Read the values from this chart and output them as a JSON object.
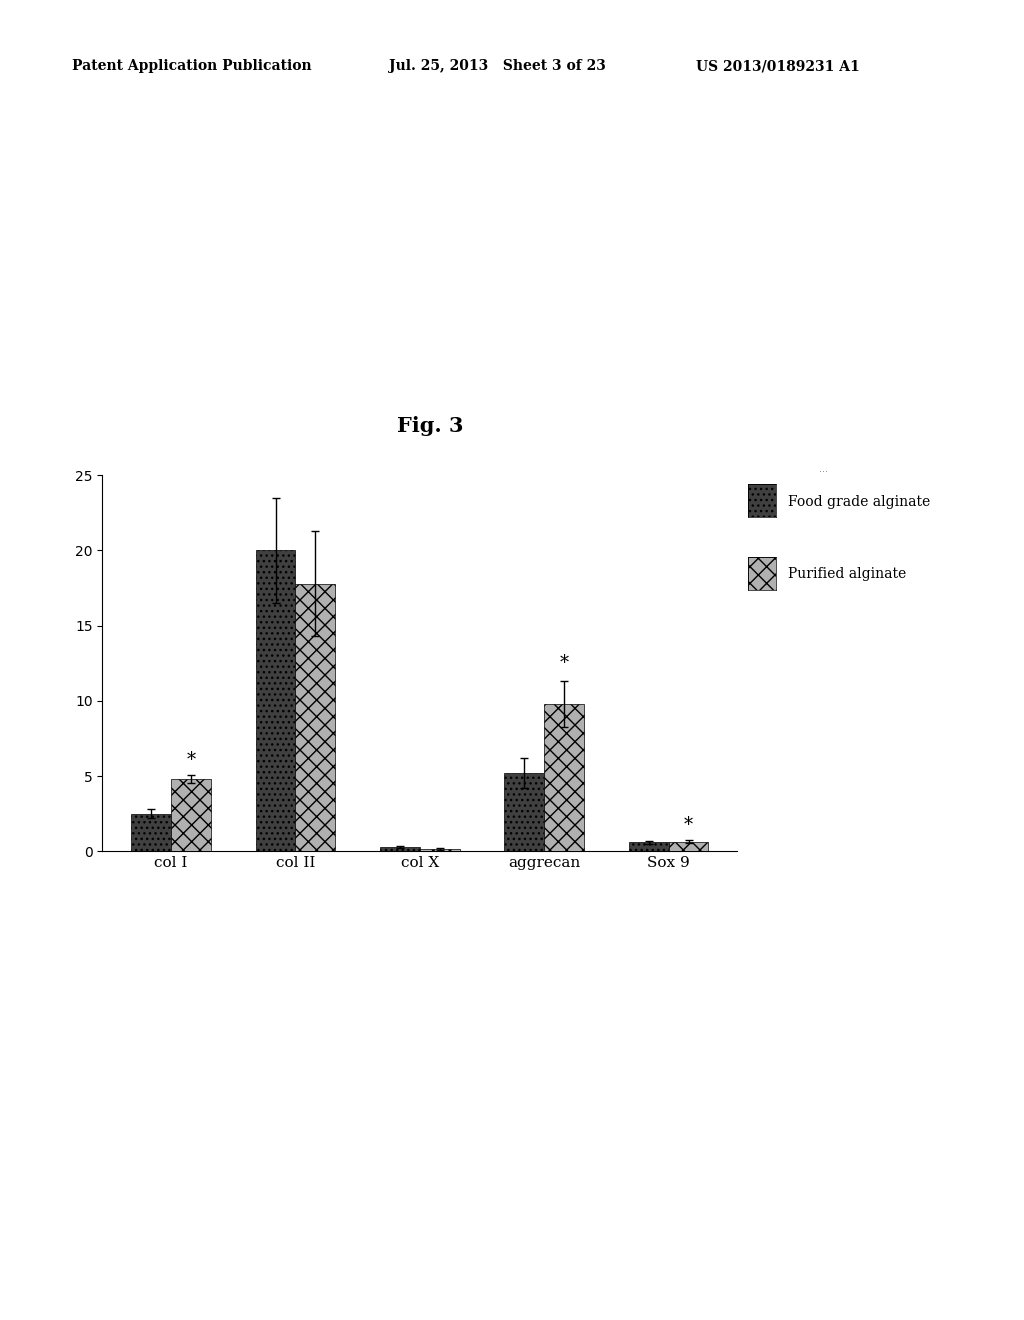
{
  "categories": [
    "col I",
    "col II",
    "col X",
    "aggrecan",
    "Sox 9"
  ],
  "food_grade_values": [
    2.5,
    20.0,
    0.3,
    5.2,
    0.6
  ],
  "food_grade_errors": [
    0.3,
    3.5,
    0.05,
    1.0,
    0.1
  ],
  "purified_values": [
    4.8,
    17.8,
    0.15,
    9.8,
    0.65
  ],
  "purified_errors": [
    0.25,
    3.5,
    0.05,
    1.5,
    0.1
  ],
  "food_grade_color": "#404040",
  "purified_color": "#b0b0b0",
  "ylim": [
    0,
    25
  ],
  "yticks": [
    0,
    5,
    10,
    15,
    20,
    25
  ],
  "legend_food_label": "Food grade alginate",
  "legend_purified_label": "Purified alginate",
  "fig_title": "Fig. 3",
  "header_left": "Patent Application Publication",
  "header_center": "Jul. 25, 2013   Sheet 3 of 23",
  "header_right": "US 2013/0189231 A1",
  "bar_width": 0.32
}
